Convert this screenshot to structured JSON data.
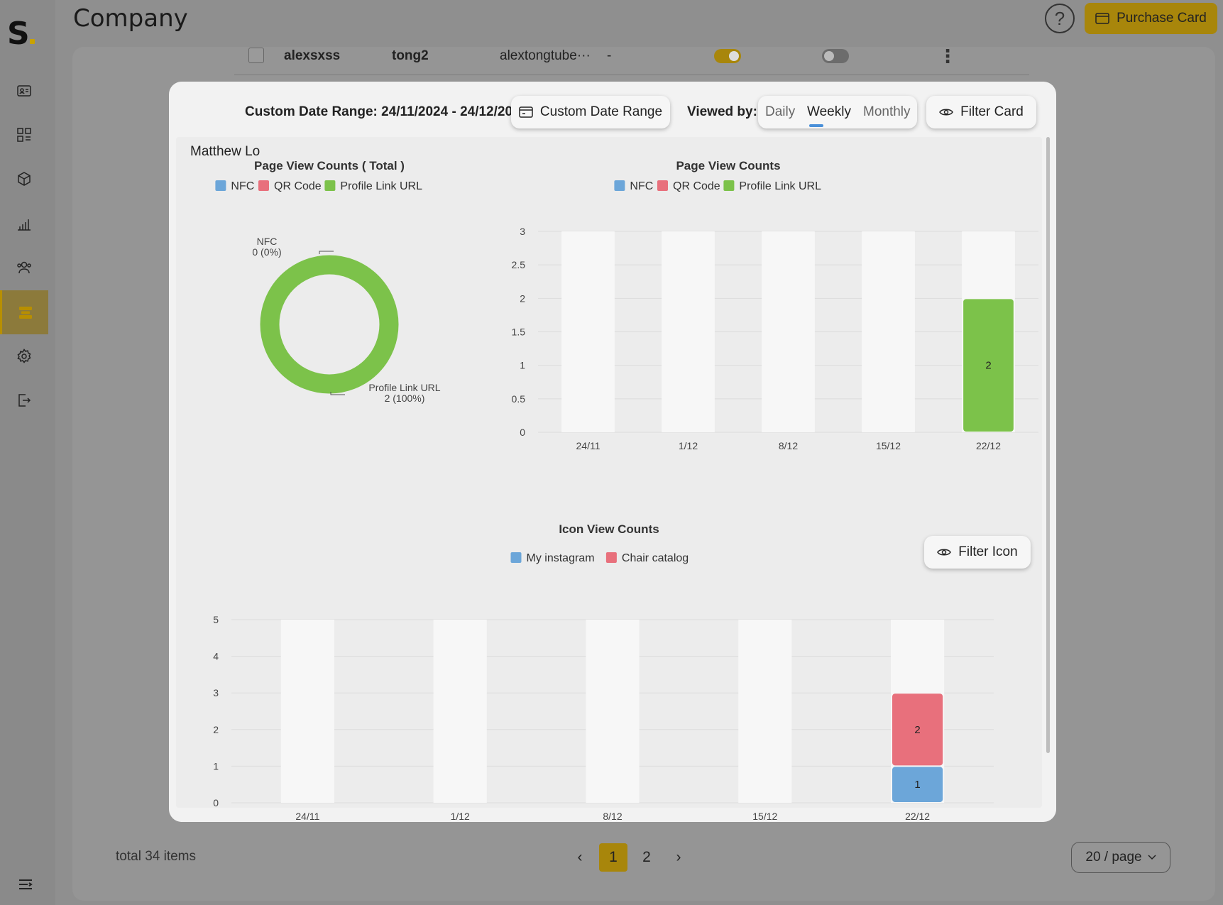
{
  "header": {
    "title": "Company",
    "help_glyph": "?",
    "purchase_label": "Purchase Card"
  },
  "sidebar": {
    "logo_letter": "S",
    "items": [
      {
        "icon": "profile-card-icon"
      },
      {
        "icon": "dashboard-grid-icon"
      },
      {
        "icon": "box-icon"
      },
      {
        "icon": "bar-chart-icon"
      },
      {
        "icon": "users-icon"
      },
      {
        "icon": "cards-icon",
        "active": true
      },
      {
        "icon": "gear-icon"
      },
      {
        "icon": "logout-icon"
      }
    ]
  },
  "table_row": {
    "name": "alexsxss",
    "username": "tong2",
    "email": "alextongtube···",
    "dash": "-"
  },
  "footer": {
    "total": "total 34 items",
    "prev": "‹",
    "next": "›",
    "pages": [
      "1",
      "2"
    ],
    "page_size": "20 / page"
  },
  "modal": {
    "date_range_text": "Custom Date Range: 24/11/2024 - 24/12/2024",
    "custom_range_btn": "Custom Date Range",
    "viewed_by_label": "Viewed by:",
    "view_options": [
      "Daily",
      "Weekly",
      "Monthly"
    ],
    "active_view": "Weekly",
    "filter_card_btn": "Filter Card",
    "filter_icon_btn": "Filter Icon",
    "owner_name": "Matthew Lo"
  },
  "colors": {
    "nfc": "#6ca6d9",
    "qr": "#e8707c",
    "profile": "#7cc24a",
    "accent": "#a8860b"
  },
  "chart_data": [
    {
      "type": "pie",
      "title": "Page View Counts ( Total )",
      "legend": [
        "NFC",
        "QR Code",
        "Profile Link URL"
      ],
      "slices": [
        {
          "name": "NFC",
          "value": 0,
          "label": "0 (0%)"
        },
        {
          "name": "QR Code",
          "value": 0
        },
        {
          "name": "Profile Link URL",
          "value": 2,
          "label": "2 (100%)"
        }
      ]
    },
    {
      "type": "bar",
      "title": "Page View Counts",
      "legend": [
        "NFC",
        "QR Code",
        "Profile Link URL"
      ],
      "categories": [
        "24/11",
        "1/12",
        "8/12",
        "15/12",
        "22/12"
      ],
      "yticks": [
        "0",
        "0.5",
        "1",
        "1.5",
        "2",
        "2.5",
        "3"
      ],
      "ylim": [
        0,
        3
      ],
      "series": [
        {
          "name": "NFC",
          "values": [
            0,
            0,
            0,
            0,
            0
          ]
        },
        {
          "name": "QR Code",
          "values": [
            0,
            0,
            0,
            0,
            0
          ]
        },
        {
          "name": "Profile Link URL",
          "values": [
            0,
            0,
            0,
            0,
            2
          ]
        }
      ]
    },
    {
      "type": "bar",
      "title": "Icon View Counts",
      "legend": [
        "My instagram",
        "Chair catalog"
      ],
      "categories": [
        "24/11",
        "1/12",
        "8/12",
        "15/12",
        "22/12"
      ],
      "yticks": [
        "0",
        "1",
        "2",
        "3",
        "4",
        "5"
      ],
      "ylim": [
        0,
        5
      ],
      "series": [
        {
          "name": "My instagram",
          "values": [
            0,
            0,
            0,
            0,
            1
          ]
        },
        {
          "name": "Chair catalog",
          "values": [
            0,
            0,
            0,
            0,
            2
          ]
        }
      ]
    }
  ]
}
